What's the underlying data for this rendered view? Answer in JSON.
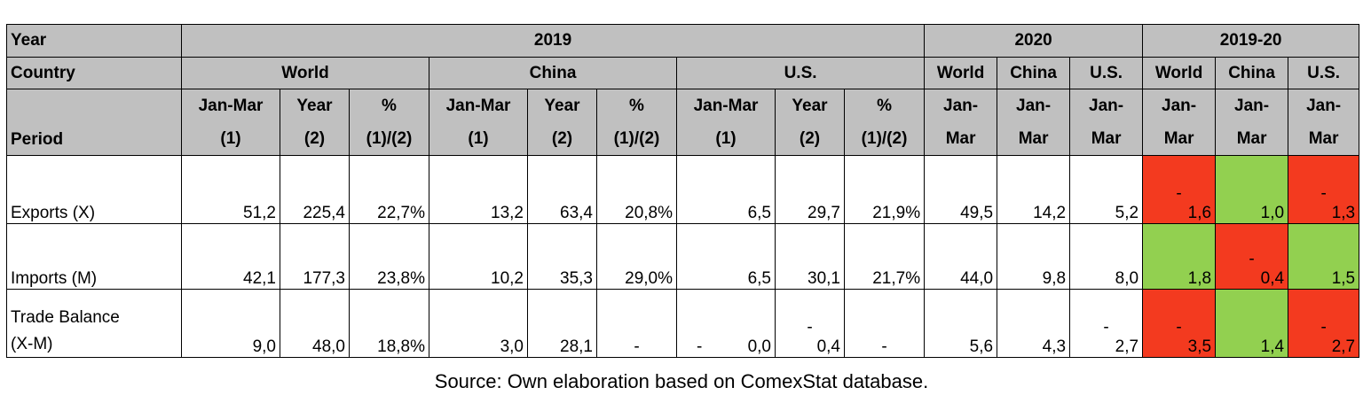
{
  "header": {
    "year_label": "Year",
    "year_2019": "2019",
    "year_2020": "2020",
    "year_2019_20": "2019-20",
    "country_label": "Country",
    "world": "World",
    "china": "China",
    "us": "U.S.",
    "period_label": "Period",
    "jan_mar": "Jan-Mar",
    "year": "Year",
    "pct": "%",
    "p1": "(1)",
    "p2": "(2)",
    "p12": "(1)/(2)",
    "jan_dash": "Jan-",
    "mar": "Mar"
  },
  "rows": [
    {
      "label": "Exports (X)",
      "label_2": "",
      "world_q1": "51,2",
      "world_year": "225,4",
      "world_pct": "22,7%",
      "china_q1": "13,2",
      "china_year": "63,4",
      "china_pct": "20,8%",
      "us_q1": "6,5",
      "us_year": "29,7",
      "us_pct": "21,9%",
      "w2020": "49,5",
      "c2020": "14,2",
      "u2020": "5,2",
      "wchg": "1,6",
      "wchg_sign": "-",
      "cchg": "1,0",
      "cchg_sign": "",
      "uchg": "1,3",
      "uchg_sign": "-"
    },
    {
      "label": "Imports (M)",
      "label_2": "",
      "world_q1": "42,1",
      "world_year": "177,3",
      "world_pct": "23,8%",
      "china_q1": "10,2",
      "china_year": "35,3",
      "china_pct": "29,0%",
      "us_q1": "6,5",
      "us_year": "30,1",
      "us_pct": "21,7%",
      "w2020": "44,0",
      "c2020": "9,8",
      "u2020": "8,0",
      "wchg": "1,8",
      "wchg_sign": "",
      "cchg": "0,4",
      "cchg_sign": "-",
      "uchg": "1,5",
      "uchg_sign": ""
    },
    {
      "label": "Trade Balance",
      "label_2": "(X-M)",
      "world_q1": "9,0",
      "world_year": "48,0",
      "world_pct": "18,8%",
      "china_q1": "3,0",
      "china_year": "28,1",
      "china_pct": "-",
      "us_q1": "0,0",
      "us_q1_sign": "-",
      "us_year": "0,4",
      "us_year_sign": "-",
      "us_pct": "-",
      "w2020": "5,6",
      "c2020": "4,3",
      "u2020": "2,7",
      "u2020_sign": "-",
      "wchg": "3,5",
      "wchg_sign": "-",
      "cchg": "1,4",
      "cchg_sign": "",
      "uchg": "2,7",
      "uchg_sign": "-"
    }
  ],
  "colors": {
    "header_bg": "#c0c0c0",
    "negative": "#f33a1f",
    "positive": "#92d050"
  },
  "source": "Source: Own elaboration based on ComexStat database."
}
